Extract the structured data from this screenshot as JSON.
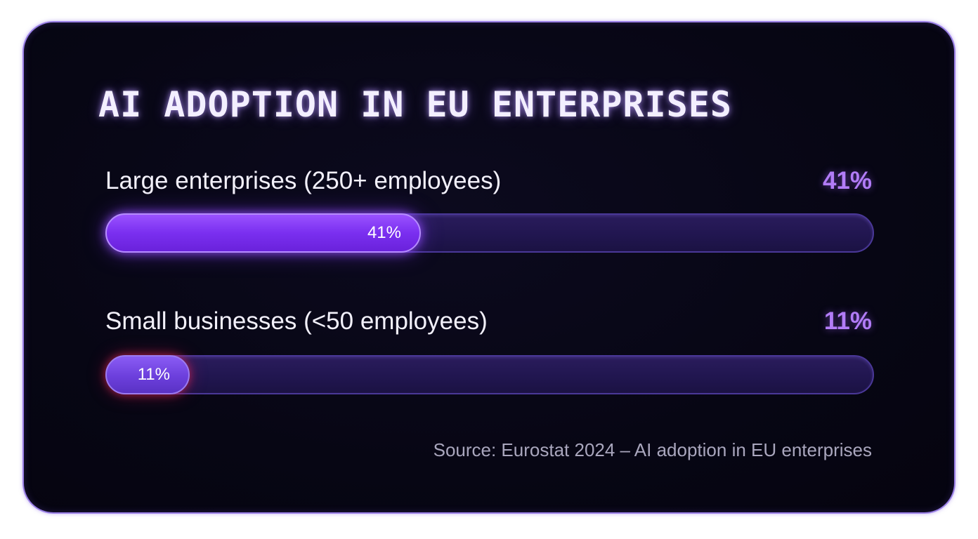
{
  "colors": {
    "background": "#070614",
    "border": "#9a7fe6",
    "accent": "#b27cf7",
    "bar_fill_large": "#7a2ff0",
    "bar_fill_small": "#6c3fdc",
    "track": "#211650"
  },
  "chart_data": {
    "type": "bar",
    "orientation": "horizontal",
    "title": "AI ADOPTION IN EU ENTERPRISES",
    "categories": [
      "Large enterprises (250+ employees)",
      "Small businesses (<50 employees)"
    ],
    "values": [
      41,
      11
    ],
    "value_labels": [
      "41%",
      "11%"
    ],
    "unit": "%",
    "xlim": [
      0,
      100
    ],
    "grid": false,
    "legend": "none",
    "source": "Source: Eurostat 2024 – AI adoption in EU enterprises"
  }
}
